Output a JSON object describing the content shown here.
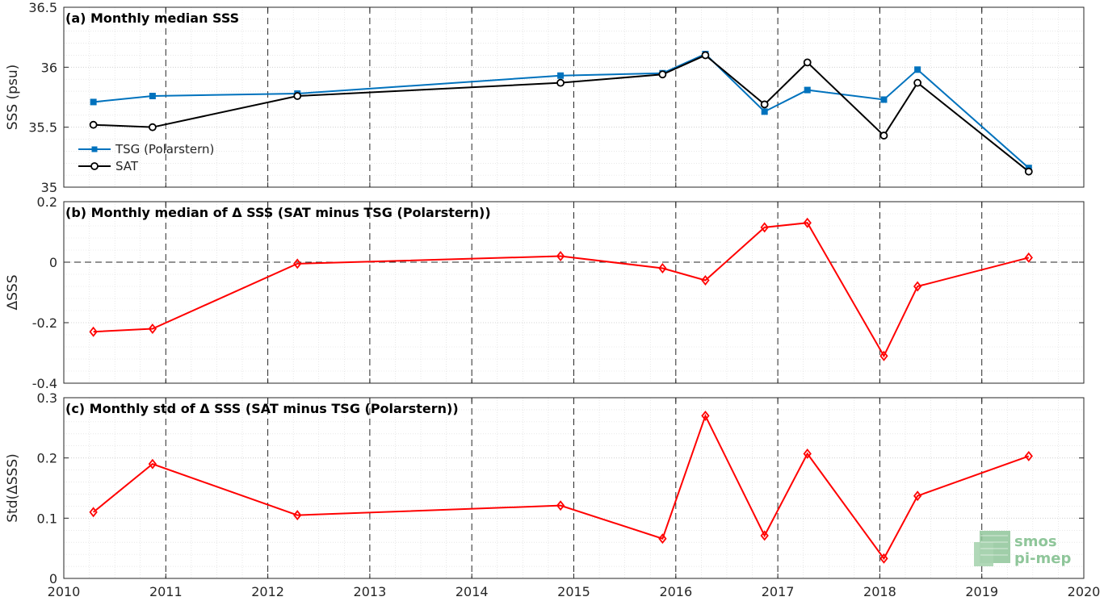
{
  "chart_data": [
    {
      "type": "line",
      "title": "(a) Monthly median SSS",
      "xlabel": "",
      "ylabel": "SSS (psu)",
      "xlim": [
        2010,
        2020
      ],
      "ylim": [
        35,
        36.5
      ],
      "yticks": [
        35,
        35.5,
        36,
        36.5
      ],
      "ytick_labels": [
        "35",
        "35.5",
        "36",
        "36.5"
      ],
      "legend_placement": "lower-left",
      "series": [
        {
          "name": "TSG (Polarstern)",
          "color": "#0072bd",
          "marker": "square",
          "x": [
            2010.29,
            2010.87,
            2012.29,
            2014.87,
            2015.87,
            2016.29,
            2016.87,
            2017.29,
            2018.04,
            2018.37,
            2019.46
          ],
          "y": [
            35.71,
            35.76,
            35.78,
            35.93,
            35.95,
            36.11,
            35.63,
            35.81,
            35.73,
            35.98,
            35.16
          ]
        },
        {
          "name": "SAT",
          "color": "#000000",
          "marker": "circle",
          "x": [
            2010.29,
            2010.87,
            2012.29,
            2014.87,
            2015.87,
            2016.29,
            2016.87,
            2017.29,
            2018.04,
            2018.37,
            2019.46
          ],
          "y": [
            35.52,
            35.5,
            35.76,
            35.87,
            35.94,
            36.1,
            35.69,
            36.04,
            35.43,
            35.87,
            35.13
          ]
        }
      ]
    },
    {
      "type": "line",
      "title": "(b) Monthly median of Δ SSS (SAT minus TSG (Polarstern))",
      "xlabel": "",
      "ylabel": "ΔSSS",
      "xlim": [
        2010,
        2020
      ],
      "ylim": [
        -0.4,
        0.2
      ],
      "yticks": [
        -0.4,
        -0.2,
        0,
        0.2
      ],
      "ytick_labels": [
        "-0.4",
        "-0.2",
        "0",
        "0.2"
      ],
      "zero_line": true,
      "series": [
        {
          "color": "#ff0000",
          "marker": "diamond",
          "x": [
            2010.29,
            2010.87,
            2012.29,
            2014.87,
            2015.87,
            2016.29,
            2016.87,
            2017.29,
            2018.04,
            2018.37,
            2019.46
          ],
          "y": [
            -0.23,
            -0.22,
            -0.005,
            0.02,
            -0.02,
            -0.06,
            0.115,
            0.13,
            -0.31,
            -0.08,
            0.015
          ]
        }
      ]
    },
    {
      "type": "line",
      "title": "(c) Monthly std of Δ SSS (SAT minus TSG (Polarstern))",
      "xlabel": "",
      "ylabel": "Std(ΔSSS)",
      "xlim": [
        2010,
        2020
      ],
      "ylim": [
        0,
        0.3
      ],
      "yticks": [
        0,
        0.1,
        0.2,
        0.3
      ],
      "ytick_labels": [
        "0",
        "0.1",
        "0.2",
        "0.3"
      ],
      "xticks": [
        2010,
        2011,
        2012,
        2013,
        2014,
        2015,
        2016,
        2017,
        2018,
        2019,
        2020
      ],
      "xtick_labels": [
        "2010",
        "2011",
        "2012",
        "2013",
        "2014",
        "2015",
        "2016",
        "2017",
        "2018",
        "2019",
        "2020"
      ],
      "series": [
        {
          "color": "#ff0000",
          "marker": "diamond",
          "x": [
            2010.29,
            2010.87,
            2012.29,
            2014.87,
            2015.87,
            2016.29,
            2016.87,
            2017.29,
            2018.04,
            2018.37,
            2019.46
          ],
          "y": [
            0.11,
            0.19,
            0.105,
            0.121,
            0.066,
            0.27,
            0.071,
            0.207,
            0.033,
            0.137,
            0.203
          ]
        }
      ]
    }
  ],
  "grid": true,
  "logo": {
    "line1": "smos",
    "line2": "pi-mep"
  }
}
